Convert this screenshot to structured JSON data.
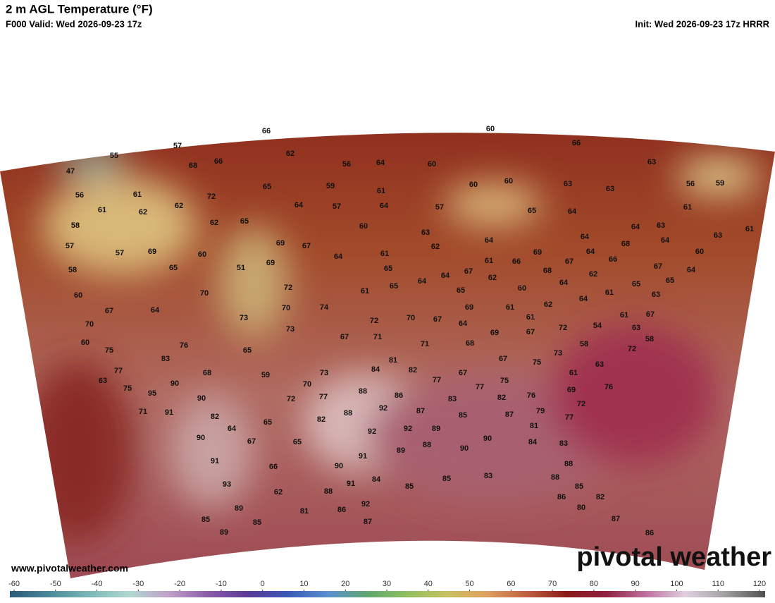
{
  "header": {
    "title": "2 m AGL Temperature (°F)",
    "valid": "F000 Valid: Wed 2026-09-23 17z",
    "init": "Init: Wed 2026-09-23 17z HRRR"
  },
  "watermark": "pivotal weather",
  "url": "www.pivotalweather.com",
  "colorbar": {
    "ticks": [
      -60,
      -50,
      -40,
      -30,
      -20,
      -10,
      0,
      10,
      20,
      30,
      40,
      50,
      60,
      70,
      80,
      90,
      100,
      110,
      120
    ]
  },
  "station_values": [
    66,
    60,
    57,
    55,
    62,
    68,
    66,
    56,
    64,
    60,
    66,
    63,
    47,
    61,
    72,
    65,
    59,
    61,
    60,
    60,
    63,
    63,
    56,
    59,
    56,
    61,
    62,
    62,
    64,
    57,
    64,
    57,
    65,
    64,
    61,
    58,
    62,
    65,
    60,
    63,
    64,
    63,
    63,
    61,
    57,
    57,
    69,
    60,
    69,
    67,
    64,
    61,
    62,
    64,
    64,
    64,
    68,
    64,
    60,
    58,
    65,
    51,
    69,
    65,
    61,
    66,
    69,
    67,
    66,
    68,
    62,
    67,
    64,
    60,
    70,
    72,
    61,
    65,
    64,
    64,
    67,
    62,
    65,
    60,
    64,
    61,
    65,
    65,
    63,
    67,
    64,
    70,
    74,
    69,
    61,
    62,
    64,
    61,
    67,
    70,
    73,
    73,
    72,
    70,
    67,
    64,
    61,
    54,
    63,
    60,
    76,
    67,
    71,
    69,
    67,
    72,
    58,
    75,
    65,
    71,
    68,
    58,
    72,
    83,
    81,
    67,
    75,
    73,
    63,
    77,
    68,
    59,
    73,
    84,
    82,
    67,
    61,
    63,
    90,
    70,
    77,
    75,
    69,
    76,
    75,
    95,
    88,
    86,
    77,
    76,
    90,
    72,
    77,
    83,
    82,
    72,
    71,
    91,
    82,
    88,
    92,
    87,
    85,
    87,
    79,
    77,
    82,
    65,
    64,
    90,
    92,
    92,
    89,
    81,
    67,
    65,
    90,
    84,
    83,
    91,
    88,
    89,
    90,
    66,
    90,
    91,
    88,
    93,
    91,
    84,
    85,
    85,
    83,
    88,
    62,
    88,
    85,
    89,
    81,
    86,
    92,
    86,
    82,
    80,
    85,
    85,
    87,
    87,
    89,
    86
  ]
}
